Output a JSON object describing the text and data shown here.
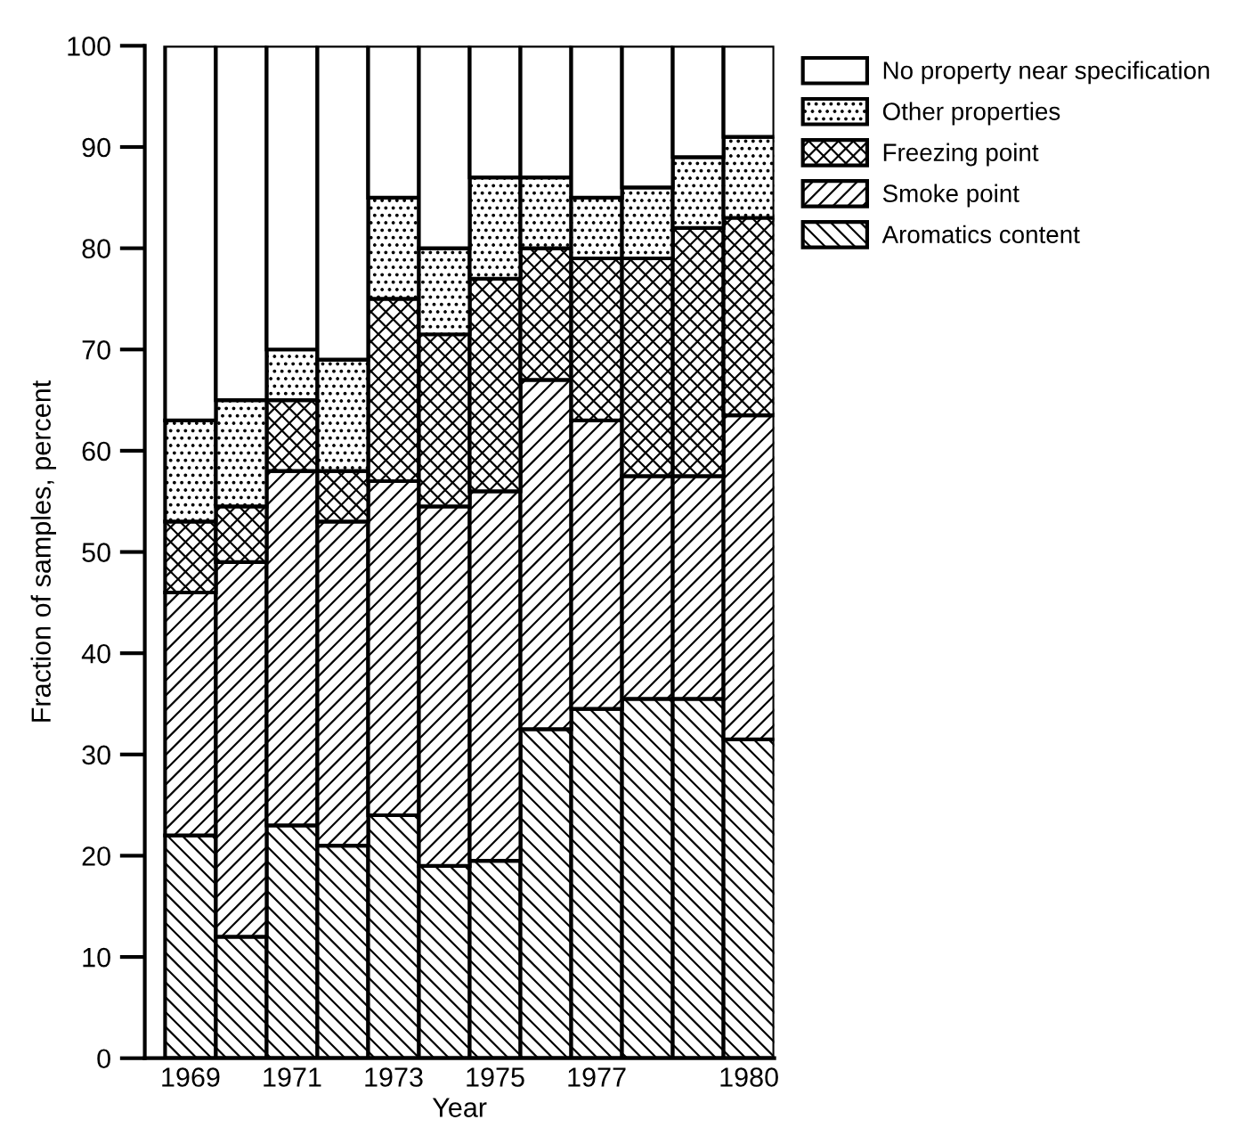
{
  "chart_data": {
    "type": "bar",
    "stacked": true,
    "xlabel": "Year",
    "ylabel": "Fraction of samples, percent",
    "categories": [
      "1969",
      null,
      "1971",
      null,
      "1973",
      null,
      "1975",
      null,
      "1977",
      null,
      null,
      "1980"
    ],
    "series": [
      {
        "name": "Aromatics content",
        "color": "#000000",
        "values": [
          22,
          12,
          23,
          21,
          24,
          19,
          19.5,
          32.5,
          34.5,
          35.5,
          35.5,
          31.5
        ]
      },
      {
        "name": "Smoke point",
        "color": "#000000",
        "values": [
          24,
          37,
          35,
          32,
          33,
          35.5,
          36.5,
          34.5,
          28.5,
          22,
          22,
          32
        ]
      },
      {
        "name": "Freezing point",
        "color": "#000000",
        "values": [
          7,
          5.5,
          7,
          5,
          18,
          17,
          21,
          13,
          16,
          21.5,
          24.5,
          19.5
        ]
      },
      {
        "name": "Other properties",
        "color": "#000000",
        "values": [
          10,
          10.5,
          5,
          11,
          10,
          8.5,
          10,
          7,
          6,
          7,
          7,
          8
        ]
      },
      {
        "name": "No property near specification",
        "color": "#ffffff",
        "values": [
          37,
          35,
          30,
          31,
          15,
          20,
          13,
          13,
          15,
          14,
          11,
          9
        ]
      }
    ],
    "ylim": [
      0,
      100
    ],
    "yticks": [
      0,
      10,
      20,
      30,
      40,
      50,
      60,
      70,
      80,
      90,
      100
    ],
    "grid": false,
    "legend": "top right"
  }
}
